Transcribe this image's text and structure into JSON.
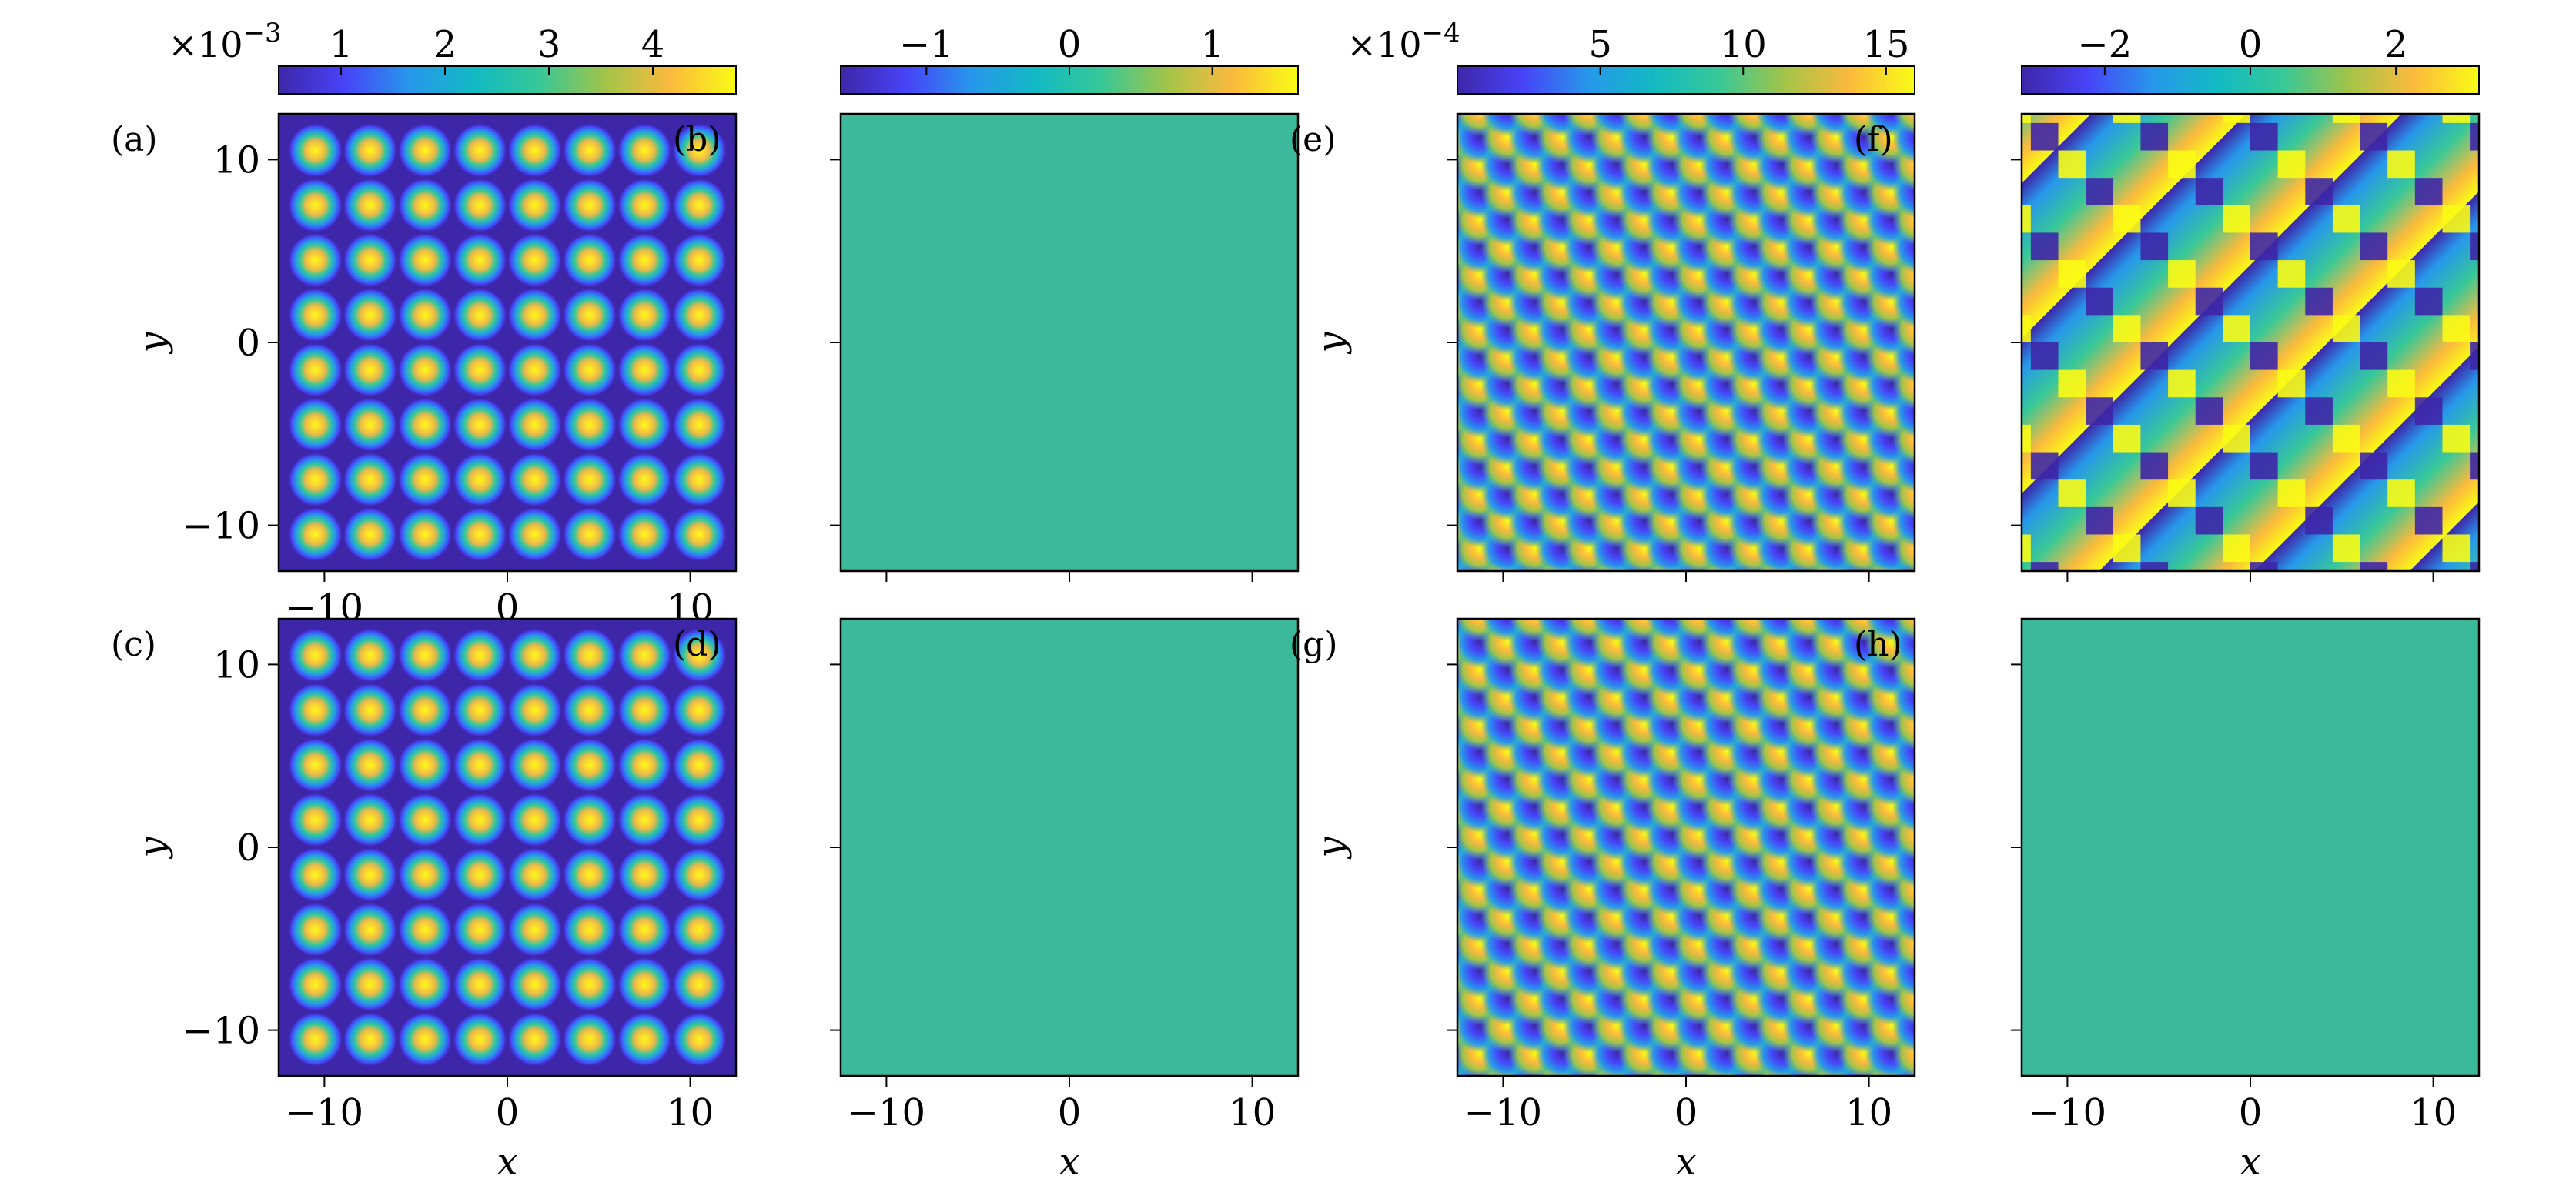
{
  "colors": {
    "colormap": [
      "#3e26a8",
      "#4743f8",
      "#2797eb",
      "#12bac3",
      "#37c897",
      "#a2c449",
      "#fbba3d",
      "#f9fb15"
    ],
    "field_color": "#3cb99a",
    "hole_color": "#3e26a8",
    "frame": "#000000"
  },
  "chart_data": [
    {
      "panel": "(a)",
      "type": "heatmap",
      "pattern": "square lattice of bright spots on dark background",
      "x_range": [
        -12.5,
        12.5
      ],
      "y_range": [
        -12.5,
        12.5
      ],
      "lattice_x": [
        -10.5,
        -7.5,
        -4.5,
        -1.5,
        1.5,
        4.5,
        7.5,
        10.5
      ],
      "lattice_y": [
        -10.5,
        -7.5,
        -4.5,
        -1.5,
        1.5,
        4.5,
        7.5,
        10.5
      ],
      "x_ticks": [
        "−10",
        "0",
        "10"
      ],
      "y_ticks": [
        "−10",
        "0",
        "10"
      ],
      "xlabel": "",
      "ylabel": "y",
      "colorbar": {
        "multiplier": "×10",
        "multiplier_exp": "−3",
        "range": [
          0.4,
          4.8
        ],
        "ticks": [
          1,
          2,
          3,
          4
        ],
        "tick_labels": [
          "1",
          "2",
          "3",
          "4"
        ]
      }
    },
    {
      "panel": "(b)",
      "type": "heatmap",
      "pattern": "uniform",
      "uniform_value": 0,
      "x_range": [
        -12.5,
        12.5
      ],
      "y_range": [
        -12.5,
        12.5
      ],
      "colorbar": {
        "multiplier": "",
        "multiplier_exp": "",
        "range": [
          -1.6,
          1.6
        ],
        "ticks": [
          -1,
          0,
          1
        ],
        "tick_labels": [
          "−1",
          "0",
          "1"
        ]
      }
    },
    {
      "panel": "(c)",
      "type": "heatmap",
      "pattern": "square lattice of bright spots on dark background",
      "x_range": [
        -12.5,
        12.5
      ],
      "y_range": [
        -12.5,
        12.5
      ],
      "x_ticks": [
        "−10",
        "0",
        "10"
      ],
      "y_ticks": [
        "−10",
        "0",
        "10"
      ],
      "xlabel": "x",
      "ylabel": "y"
    },
    {
      "panel": "(d)",
      "type": "heatmap",
      "pattern": "uniform",
      "uniform_value": 0,
      "x_range": [
        -12.5,
        12.5
      ],
      "y_range": [
        -12.5,
        12.5
      ],
      "x_ticks": [
        "−10",
        "0",
        "10"
      ],
      "xlabel": "x"
    },
    {
      "panel": "(e)",
      "type": "heatmap",
      "pattern": "checkerboard of bright spots and dark holes",
      "x_range": [
        -12.5,
        12.5
      ],
      "y_range": [
        -12.5,
        12.5
      ],
      "ylabel": "y",
      "colorbar": {
        "multiplier": "×10",
        "multiplier_exp": "−4",
        "range": [
          0,
          16
        ],
        "ticks": [
          5,
          10,
          15
        ],
        "tick_labels": [
          "5",
          "10",
          "15"
        ]
      }
    },
    {
      "panel": "(f)",
      "type": "heatmap",
      "pattern": "diagonal phase stripes with 2π jumps",
      "x_range": [
        -12.5,
        12.5
      ],
      "y_range": [
        -12.5,
        12.5
      ],
      "colorbar": {
        "multiplier": "",
        "multiplier_exp": "",
        "range": [
          -3.14,
          3.14
        ],
        "ticks": [
          -2,
          0,
          2
        ],
        "tick_labels": [
          "−2",
          "0",
          "2"
        ]
      }
    },
    {
      "panel": "(g)",
      "type": "heatmap",
      "pattern": "checkerboard of bright spots and dark holes",
      "x_range": [
        -12.5,
        12.5
      ],
      "y_range": [
        -12.5,
        12.5
      ],
      "x_ticks": [
        "−10",
        "0",
        "10"
      ],
      "xlabel": "x",
      "ylabel": "y"
    },
    {
      "panel": "(h)",
      "type": "heatmap",
      "pattern": "uniform",
      "uniform_value": 0,
      "x_range": [
        -12.5,
        12.5
      ],
      "y_range": [
        -12.5,
        12.5
      ],
      "x_ticks": [
        "−10",
        "0",
        "10"
      ],
      "xlabel": "x"
    }
  ]
}
